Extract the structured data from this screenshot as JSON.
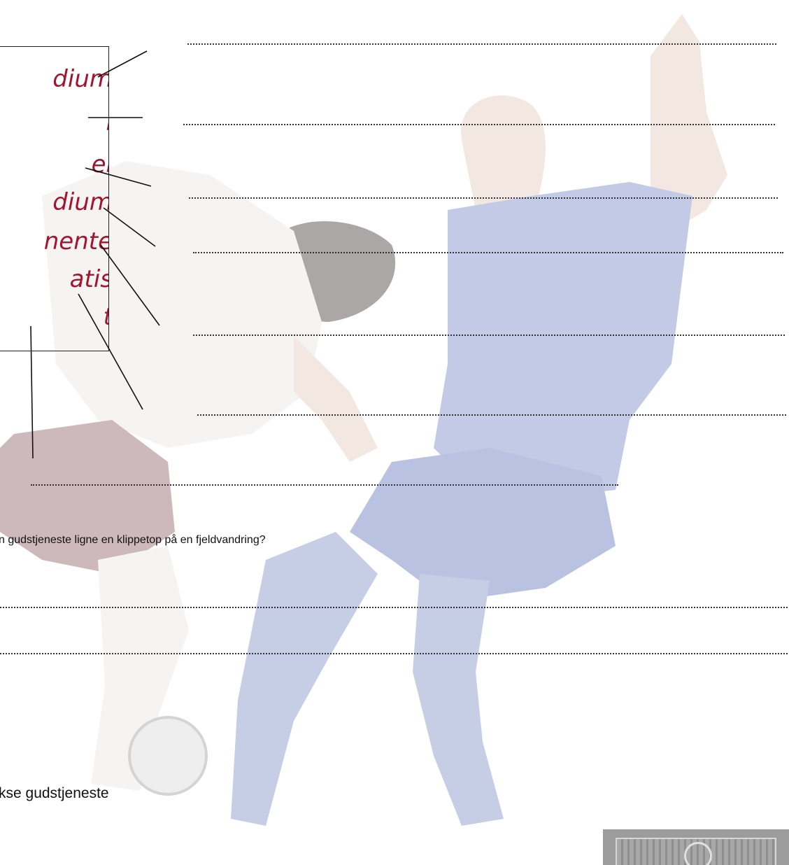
{
  "terms": [
    "dium",
    "l",
    "el",
    "dium",
    "nente",
    "atis",
    "t"
  ],
  "questions": {
    "q1": "n gudstjeneste ligne en klippetop på en fjeldvandring?",
    "q2": "kse gudstjeneste"
  },
  "colors": {
    "term_text": "#a3142e",
    "white_kit": "#e9e6e4",
    "maroon_kit": "#8a5a5e",
    "blue_kit": "#7a8bc4",
    "skin": "#e3c9b8"
  },
  "icons": {
    "stamp": "decorative-stamp-icon"
  }
}
